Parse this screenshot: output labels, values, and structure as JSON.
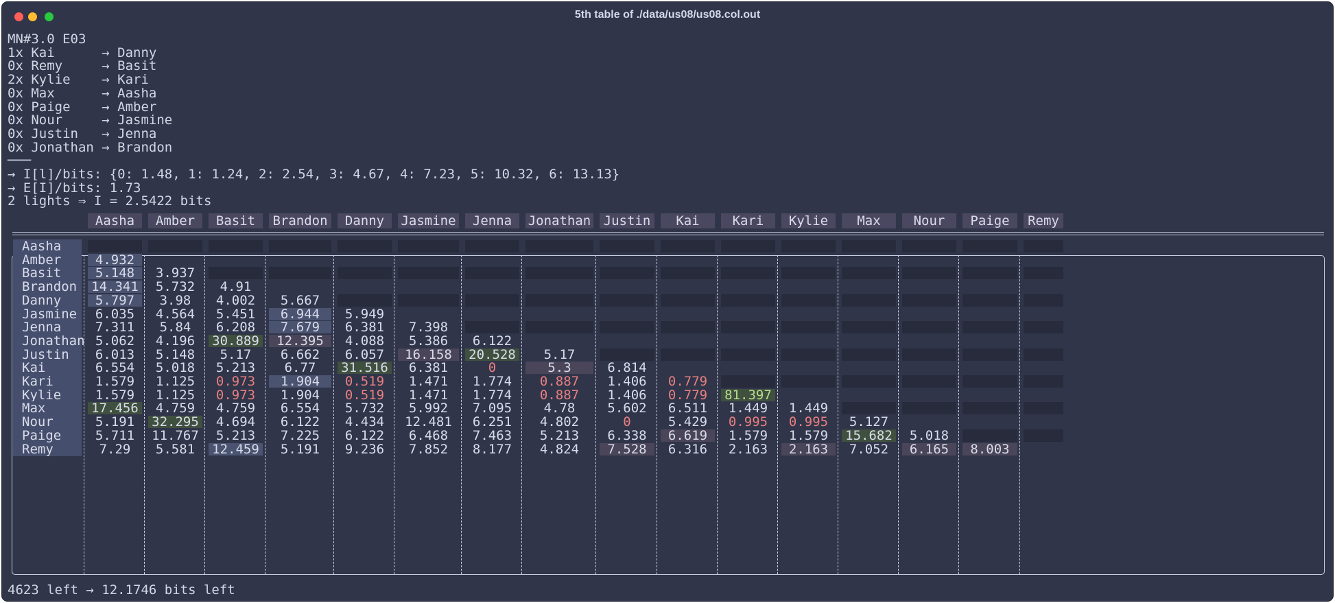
{
  "window": {
    "title": "5th table of ./data/us08/us08.col.out"
  },
  "header_lines": [
    "MN#3.0 E03",
    "1x Kai      → Danny",
    "0x Remy     → Basit",
    "2x Kylie    → Kari",
    "0x Max      → Aasha",
    "0x Paige    → Amber",
    "0x Nour     → Jasmine",
    "0x Justin   → Jenna",
    "0x Jonathan → Brandon",
    "───",
    "→ I[l]/bits: {0: 1.48, 1: 1.24, 2: 2.54, 3: 4.67, 4: 7.23, 5: 10.32, 6: 13.13}",
    "→ E[I]/bits: 1.73",
    "2 lights ⇒ I = 2.5422 bits"
  ],
  "table": {
    "columns": [
      "Aasha",
      "Amber",
      "Basit",
      "Brandon",
      "Danny",
      "Jasmine",
      "Jenna",
      "Jonathan",
      "Justin",
      "Kai",
      "Kari",
      "Kylie",
      "Max",
      "Nour",
      "Paige",
      "Remy"
    ],
    "rows": [
      {
        "label": "Aasha",
        "cells": []
      },
      {
        "label": "Amber",
        "cells": [
          {
            "text": "4.932",
            "style": "blue"
          }
        ]
      },
      {
        "label": "Basit",
        "cells": [
          {
            "text": "5.148",
            "style": "blue"
          },
          {
            "text": "3.937"
          }
        ]
      },
      {
        "label": "Brandon",
        "cells": [
          {
            "text": "14.341",
            "style": "blue"
          },
          {
            "text": "5.732"
          },
          {
            "text": "4.91"
          }
        ]
      },
      {
        "label": "Danny",
        "cells": [
          {
            "text": "5.797",
            "style": "blue"
          },
          {
            "text": "3.98"
          },
          {
            "text": "4.002"
          },
          {
            "text": "5.667"
          }
        ]
      },
      {
        "label": "Jasmine",
        "cells": [
          {
            "text": "6.035"
          },
          {
            "text": "4.564"
          },
          {
            "text": "5.451"
          },
          {
            "text": "6.944",
            "style": "blue"
          },
          {
            "text": "5.949"
          }
        ]
      },
      {
        "label": "Jenna",
        "cells": [
          {
            "text": "7.311"
          },
          {
            "text": "5.84"
          },
          {
            "text": "6.208"
          },
          {
            "text": "7.679",
            "style": "blue"
          },
          {
            "text": "6.381"
          },
          {
            "text": "7.398"
          }
        ]
      },
      {
        "label": "Jonathan",
        "cells": [
          {
            "text": "5.062"
          },
          {
            "text": "4.196"
          },
          {
            "text": "30.889",
            "style": "green"
          },
          {
            "text": "12.395",
            "style": "mauve"
          },
          {
            "text": "4.088"
          },
          {
            "text": "5.386"
          },
          {
            "text": "6.122"
          }
        ]
      },
      {
        "label": "Justin",
        "cells": [
          {
            "text": "6.013"
          },
          {
            "text": "5.148"
          },
          {
            "text": "5.17"
          },
          {
            "text": "6.662"
          },
          {
            "text": "6.057"
          },
          {
            "text": "16.158",
            "style": "mauve"
          },
          {
            "text": "20.528",
            "style": "green"
          },
          {
            "text": "5.17"
          }
        ]
      },
      {
        "label": "Kai",
        "cells": [
          {
            "text": "6.554"
          },
          {
            "text": "5.018"
          },
          {
            "text": "5.213"
          },
          {
            "text": "6.77"
          },
          {
            "text": "31.516",
            "style": "green"
          },
          {
            "text": "6.381"
          },
          {
            "text": "0",
            "style": "red"
          },
          {
            "text": "5.3",
            "style": "mauve"
          },
          {
            "text": "6.814"
          }
        ]
      },
      {
        "label": "Kari",
        "cells": [
          {
            "text": "1.579"
          },
          {
            "text": "1.125"
          },
          {
            "text": "0.973",
            "style": "red"
          },
          {
            "text": "1.904",
            "style": "blue"
          },
          {
            "text": "0.519",
            "style": "red"
          },
          {
            "text": "1.471"
          },
          {
            "text": "1.774"
          },
          {
            "text": "0.887",
            "style": "red"
          },
          {
            "text": "1.406"
          },
          {
            "text": "0.779",
            "style": "red"
          }
        ]
      },
      {
        "label": "Kylie",
        "cells": [
          {
            "text": "1.579"
          },
          {
            "text": "1.125"
          },
          {
            "text": "0.973",
            "style": "red"
          },
          {
            "text": "1.904"
          },
          {
            "text": "0.519",
            "style": "red"
          },
          {
            "text": "1.471"
          },
          {
            "text": "1.774"
          },
          {
            "text": "0.887",
            "style": "red"
          },
          {
            "text": "1.406"
          },
          {
            "text": "0.779",
            "style": "red"
          },
          {
            "text": "81.397",
            "style": "greentext"
          }
        ]
      },
      {
        "label": "Max",
        "cells": [
          {
            "text": "17.456",
            "style": "green"
          },
          {
            "text": "4.759"
          },
          {
            "text": "4.759"
          },
          {
            "text": "6.554"
          },
          {
            "text": "5.732"
          },
          {
            "text": "5.992"
          },
          {
            "text": "7.095"
          },
          {
            "text": "4.78"
          },
          {
            "text": "5.602"
          },
          {
            "text": "6.511"
          },
          {
            "text": "1.449"
          },
          {
            "text": "1.449"
          }
        ]
      },
      {
        "label": "Nour",
        "cells": [
          {
            "text": "5.191"
          },
          {
            "text": "32.295",
            "style": "green"
          },
          {
            "text": "4.694"
          },
          {
            "text": "6.122"
          },
          {
            "text": "4.434"
          },
          {
            "text": "12.481"
          },
          {
            "text": "6.251"
          },
          {
            "text": "4.802"
          },
          {
            "text": "0",
            "style": "red"
          },
          {
            "text": "5.429"
          },
          {
            "text": "0.995",
            "style": "red"
          },
          {
            "text": "0.995",
            "style": "red"
          },
          {
            "text": "5.127"
          }
        ]
      },
      {
        "label": "Paige",
        "cells": [
          {
            "text": "5.711"
          },
          {
            "text": "11.767"
          },
          {
            "text": "5.213"
          },
          {
            "text": "7.225"
          },
          {
            "text": "6.122"
          },
          {
            "text": "6.468"
          },
          {
            "text": "7.463"
          },
          {
            "text": "5.213"
          },
          {
            "text": "6.338"
          },
          {
            "text": "6.619",
            "style": "mauve"
          },
          {
            "text": "1.579"
          },
          {
            "text": "1.579"
          },
          {
            "text": "15.682",
            "style": "green"
          },
          {
            "text": "5.018"
          }
        ]
      },
      {
        "label": "Remy",
        "cells": [
          {
            "text": "7.29"
          },
          {
            "text": "5.581"
          },
          {
            "text": "12.459",
            "style": "blue"
          },
          {
            "text": "5.191"
          },
          {
            "text": "9.236"
          },
          {
            "text": "7.852"
          },
          {
            "text": "8.177"
          },
          {
            "text": "4.824"
          },
          {
            "text": "7.528",
            "style": "mauve"
          },
          {
            "text": "6.316"
          },
          {
            "text": "2.163"
          },
          {
            "text": "2.163",
            "style": "mauve"
          },
          {
            "text": "7.052"
          },
          {
            "text": "6.165",
            "style": "mauve"
          },
          {
            "text": "8.003",
            "style": "mauve"
          }
        ]
      }
    ]
  },
  "footer": "4623 left → 12.1746 bits left"
}
